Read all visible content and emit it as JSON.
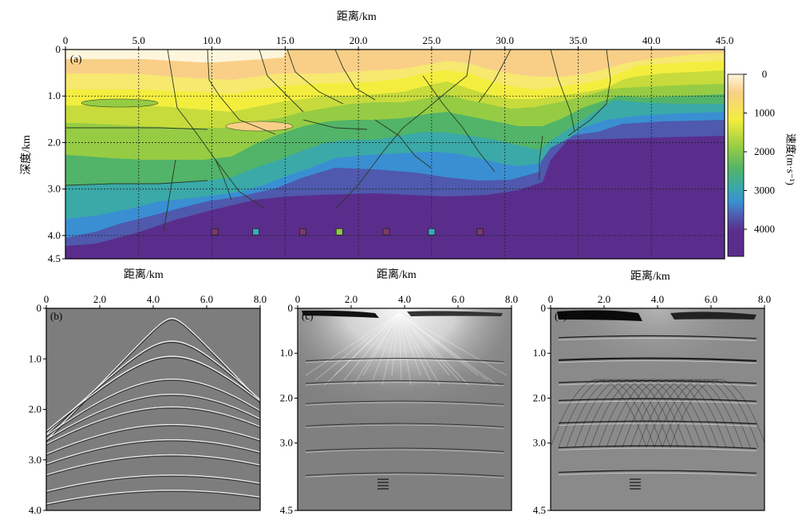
{
  "colors": {
    "velocity_scale": [
      "#fdf5dc",
      "#f9cf88",
      "#f3ee3e",
      "#96cc44",
      "#52b468",
      "#3aa9a8",
      "#3a8fd3",
      "#4f59ad",
      "#5a2d8c"
    ],
    "seismic_gray": "#808080"
  },
  "chart_data": [
    {
      "id": "a",
      "type": "heatmap",
      "panel_label": "(a)",
      "xlabel": "距离/km",
      "ylabel": "深度/km",
      "xlim": [
        0,
        45.0
      ],
      "ylim": [
        4.5,
        0
      ],
      "xticks": [
        "0",
        "5.0",
        "10.0",
        "15.0",
        "20.0",
        "25.0",
        "30.0",
        "35.0",
        "40.0",
        "45.0"
      ],
      "yticks": [
        "0",
        "1.0",
        "2.0",
        "3.0",
        "4.0",
        "4.5"
      ],
      "grid": "dashed",
      "colorbar": {
        "label": "速度(m·s⁻¹)",
        "ticks": [
          "0",
          "1000",
          "2000",
          "3000",
          "4000"
        ],
        "range": [
          0,
          4700
        ]
      },
      "markers": [
        {
          "x": 10.2,
          "depth": 3.92,
          "color": "#7a3a6a"
        },
        {
          "x": 13.0,
          "depth": 3.92,
          "color": "#3aa9c8"
        },
        {
          "x": 16.2,
          "depth": 3.92,
          "color": "#7a3a6a"
        },
        {
          "x": 18.7,
          "depth": 3.92,
          "color": "#8fcc44"
        },
        {
          "x": 21.9,
          "depth": 3.92,
          "color": "#7a3a6a"
        },
        {
          "x": 25.0,
          "depth": 3.92,
          "color": "#3aa9c8"
        },
        {
          "x": 28.3,
          "depth": 3.92,
          "color": "#7a3a6a"
        }
      ]
    },
    {
      "id": "b",
      "type": "heatmap",
      "panel_label": "(b)",
      "xlabel": "距离/km",
      "xlim": [
        0,
        8.0
      ],
      "ylim": [
        4.0,
        0
      ],
      "xticks": [
        "0",
        "2.0",
        "4.0",
        "6.0",
        "8.0"
      ],
      "yticks": [
        "0",
        "1.0",
        "2.0",
        "3.0",
        "4.0"
      ],
      "apex_x": 4.7,
      "event_times": [
        0.2,
        0.65,
        0.95,
        1.4,
        1.7,
        1.95,
        2.3,
        2.6,
        2.9,
        3.3,
        3.6
      ]
    },
    {
      "id": "c",
      "type": "heatmap",
      "panel_label": "(c)",
      "xlabel": "距离/km",
      "xlim": [
        0,
        8.0
      ],
      "ylim": [
        4.5,
        0
      ],
      "xticks": [
        "0",
        "2.0",
        "4.0",
        "6.0",
        "8.0"
      ],
      "yticks": [
        "0",
        "1.0",
        "2.0",
        "3.0",
        "4.5"
      ],
      "reflector_depths": [
        1.1,
        1.6,
        2.05,
        2.55,
        3.1,
        3.65
      ]
    },
    {
      "id": "d",
      "type": "heatmap",
      "panel_label": "(d)",
      "xlabel": "距离/km",
      "xlim": [
        0,
        8.0
      ],
      "ylim": [
        4.5,
        0
      ],
      "xticks": [
        "0",
        "2.0",
        "4.0",
        "6.0",
        "8.0"
      ],
      "yticks": [
        "0",
        "1.0",
        "2.0",
        "3.0",
        "4.5"
      ],
      "reflector_depths": [
        0.6,
        1.1,
        1.6,
        2.0,
        2.5,
        3.05,
        3.6
      ]
    }
  ]
}
